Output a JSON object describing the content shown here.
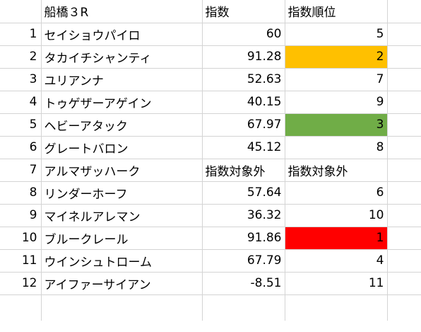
{
  "sheet": {
    "header": {
      "name": "船橋３R",
      "index": "指数",
      "rank": "指数順位"
    },
    "rows": [
      {
        "no": "1",
        "name": "セイショウパイロ",
        "index": "60",
        "rank": "5",
        "highlight": ""
      },
      {
        "no": "2",
        "name": "タカイチシャンティ",
        "index": "91.28",
        "rank": "2",
        "highlight": "#ffc000"
      },
      {
        "no": "3",
        "name": "ユリアンナ",
        "index": "52.63",
        "rank": "7",
        "highlight": ""
      },
      {
        "no": "4",
        "name": "トゥゲザーアゲイン",
        "index": "40.15",
        "rank": "9",
        "highlight": ""
      },
      {
        "no": "5",
        "name": "ヘビーアタック",
        "index": "67.97",
        "rank": "3",
        "highlight": "#70ad47"
      },
      {
        "no": "6",
        "name": "グレートバロン",
        "index": "45.12",
        "rank": "8",
        "highlight": ""
      },
      {
        "no": "7",
        "name": "アルマザッハーク",
        "index": "指数対象外",
        "rank": "指数対象外",
        "highlight": "",
        "text_cells": true
      },
      {
        "no": "8",
        "name": "リンダーホーフ",
        "index": "57.64",
        "rank": "6",
        "highlight": ""
      },
      {
        "no": "9",
        "name": "マイネルアレマン",
        "index": "36.32",
        "rank": "10",
        "highlight": ""
      },
      {
        "no": "10",
        "name": "ブルークレール",
        "index": "91.86",
        "rank": "1",
        "highlight": "#ff0000"
      },
      {
        "no": "11",
        "name": "ウインシュトローム",
        "index": "67.79",
        "rank": "4",
        "highlight": ""
      },
      {
        "no": "12",
        "name": "アイファーサイアン",
        "index": "-8.51",
        "rank": "11",
        "highlight": ""
      }
    ]
  }
}
